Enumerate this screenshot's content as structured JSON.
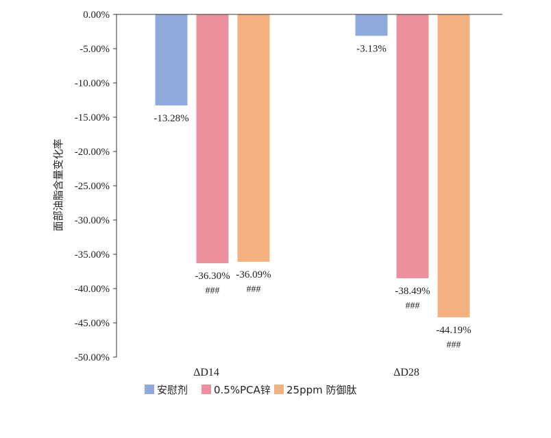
{
  "chart_data": {
    "type": "bar",
    "title": "",
    "xlabel": "",
    "ylabel": "面部油脂含量变化率",
    "ylim": [
      -50,
      0
    ],
    "ytick_step": 5,
    "yticks": [
      "0.00%",
      "-5.00%",
      "-10.00%",
      "-15.00%",
      "-20.00%",
      "-25.00%",
      "-30.00%",
      "-35.00%",
      "-40.00%",
      "-45.00%",
      "-50.00%"
    ],
    "categories": [
      "ΔD14",
      "ΔD28"
    ],
    "series": [
      {
        "name": "安慰剂",
        "color": "#8FAADC",
        "values": [
          -13.28,
          -3.13
        ],
        "labels": [
          "-13.28%",
          "-3.13%"
        ],
        "sig": [
          "",
          ""
        ]
      },
      {
        "name": "0.5%PCA锌",
        "color": "#EC909C",
        "values": [
          -36.3,
          -38.49
        ],
        "labels": [
          "-36.30%",
          "-38.49%"
        ],
        "sig": [
          "###",
          "###"
        ]
      },
      {
        "name": "25ppm 防御肽",
        "color": "#F2B17E",
        "values": [
          -36.09,
          -44.19
        ],
        "labels": [
          "-36.09%",
          "-44.19%"
        ],
        "sig": [
          "###",
          "###"
        ]
      }
    ],
    "legend_position": "bottom"
  }
}
